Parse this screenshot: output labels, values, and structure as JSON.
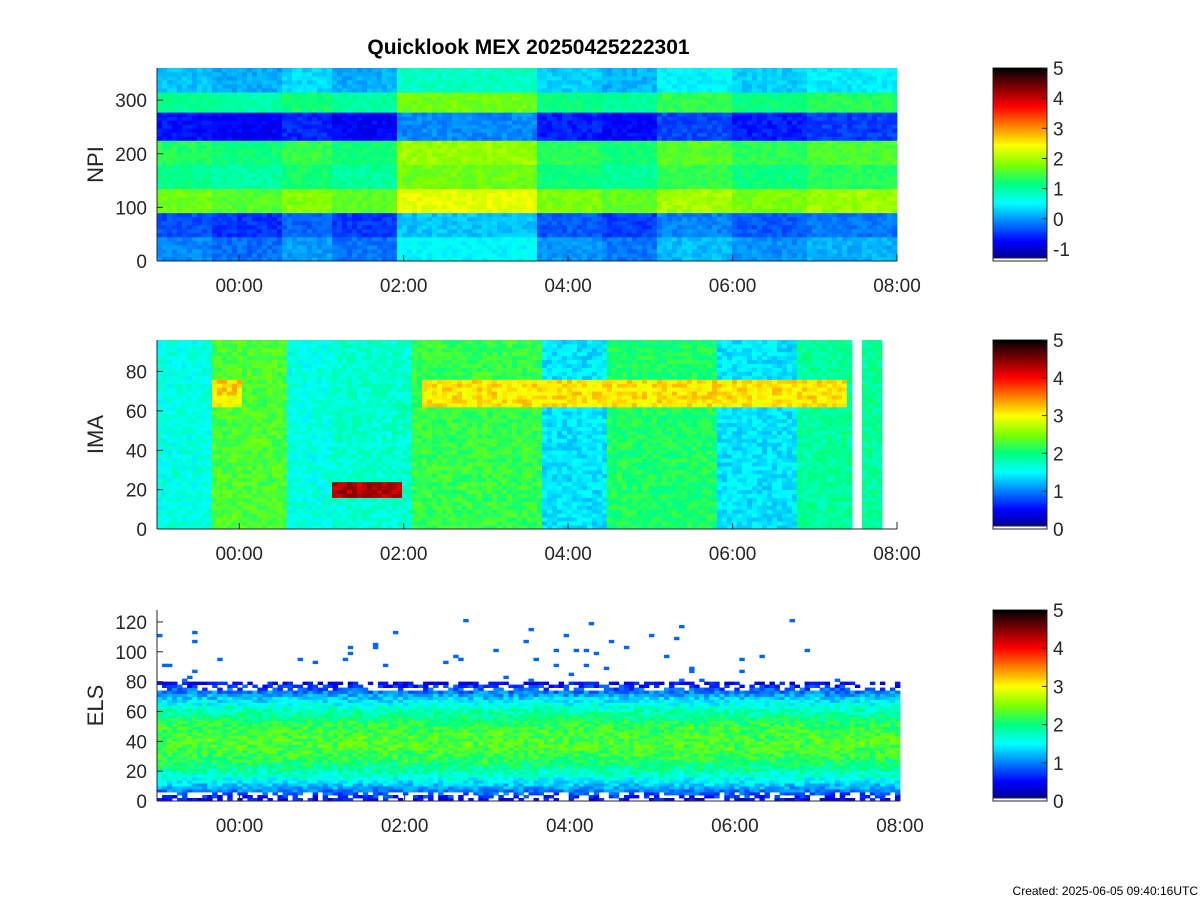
{
  "title": "Quicklook MEX 20250425222301",
  "created": "Created: 2025-06-05 09:40:16UTC",
  "colormap": [
    "#00007f",
    "#0000ff",
    "#0080ff",
    "#00ffff",
    "#00ff80",
    "#7fff00",
    "#ffff00",
    "#ff8000",
    "#ff0000",
    "#7f0000",
    "#000000"
  ],
  "chart_data": [
    {
      "type": "heatmap",
      "name": "npi",
      "ylabel": "NPI",
      "xlabel": "",
      "x_ticks": [
        "00:00",
        "02:00",
        "04:00",
        "06:00",
        "08:00"
      ],
      "x_tick_hours": [
        0,
        2,
        4,
        6,
        8
      ],
      "xlim_hours": [
        -1,
        8
      ],
      "y_ticks": [
        0,
        100,
        200,
        300
      ],
      "ylim": [
        0,
        360
      ],
      "colorbar": {
        "ticks": [
          -1,
          0,
          1,
          2,
          3,
          4,
          5
        ],
        "range": [
          -1.4,
          5
        ]
      },
      "time_blocks": [
        {
          "from": -1.0,
          "to": -0.35,
          "level": 0.4
        },
        {
          "from": -0.35,
          "to": 0.5,
          "level": 0.15
        },
        {
          "from": 0.5,
          "to": 1.1,
          "level": 0.6
        },
        {
          "from": 1.1,
          "to": 1.9,
          "level": 0.2
        },
        {
          "from": 1.9,
          "to": 3.6,
          "level": 1.5
        },
        {
          "from": 3.6,
          "to": 4.4,
          "level": 0.5
        },
        {
          "from": 4.4,
          "to": 5.1,
          "level": 0.25
        },
        {
          "from": 5.1,
          "to": 6.0,
          "level": 0.9
        },
        {
          "from": 6.0,
          "to": 6.9,
          "level": 0.5
        },
        {
          "from": 6.9,
          "to": 8.0,
          "level": 0.8
        }
      ],
      "energy_bands": [
        {
          "from": 0,
          "to": 45,
          "level": -0.3
        },
        {
          "from": 45,
          "to": 90,
          "level": -0.6
        },
        {
          "from": 90,
          "to": 135,
          "level": 1.5
        },
        {
          "from": 135,
          "to": 180,
          "level": 0.9
        },
        {
          "from": 180,
          "to": 225,
          "level": 1.1
        },
        {
          "from": 225,
          "to": 280,
          "level": -0.9
        },
        {
          "from": 280,
          "to": 315,
          "level": 0.9
        },
        {
          "from": 315,
          "to": 360,
          "level": 0.0
        }
      ]
    },
    {
      "type": "heatmap",
      "name": "ima",
      "ylabel": "IMA",
      "xlabel": "",
      "x_ticks": [
        "00:00",
        "02:00",
        "04:00",
        "06:00",
        "08:00"
      ],
      "x_tick_hours": [
        0,
        2,
        4,
        6,
        8
      ],
      "xlim_hours": [
        -1,
        8
      ],
      "y_ticks": [
        0,
        20,
        40,
        60,
        80
      ],
      "ylim": [
        0,
        96
      ],
      "colorbar": {
        "ticks": [
          0,
          1,
          2,
          3,
          4,
          5
        ],
        "range": [
          0,
          5
        ]
      },
      "data_gaps": [
        [
          7.45,
          7.55
        ],
        [
          7.8,
          8.0
        ]
      ],
      "time_blocks": [
        {
          "from": -1.0,
          "to": -0.35,
          "level": 1.6
        },
        {
          "from": -0.35,
          "to": 0.6,
          "level": 2.3
        },
        {
          "from": 0.6,
          "to": 1.1,
          "level": 1.6
        },
        {
          "from": 1.1,
          "to": 2.1,
          "level": 1.7
        },
        {
          "from": 2.1,
          "to": 3.7,
          "level": 2.2
        },
        {
          "from": 3.7,
          "to": 4.5,
          "level": 1.4
        },
        {
          "from": 4.5,
          "to": 5.8,
          "level": 2.1
        },
        {
          "from": 5.8,
          "to": 6.8,
          "level": 1.4
        },
        {
          "from": 6.8,
          "to": 8.0,
          "level": 1.9
        }
      ],
      "features": [
        {
          "from": 1.1,
          "to": 2.0,
          "energy": 20,
          "level": 4.3
        },
        {
          "from": 2.2,
          "to": 7.4,
          "energy": 72,
          "level": 3.1
        },
        {
          "from": 2.2,
          "to": 7.4,
          "energy": 65,
          "level": 3.1
        },
        {
          "from": -0.35,
          "to": 0.05,
          "energy": 72,
          "level": 3.2
        },
        {
          "from": -0.35,
          "to": 0.05,
          "energy": 65,
          "level": 3.0
        }
      ]
    },
    {
      "type": "heatmap",
      "name": "els",
      "ylabel": "ELS",
      "xlabel": "",
      "x_ticks": [
        "00:00",
        "02:00",
        "04:00",
        "06:00",
        "08:00"
      ],
      "x_tick_hours": [
        0,
        2,
        4,
        6,
        8
      ],
      "xlim_hours": [
        -1,
        8
      ],
      "y_ticks": [
        0,
        20,
        40,
        60,
        80,
        100,
        120
      ],
      "ylim": [
        0,
        128
      ],
      "colorbar": {
        "ticks": [
          0,
          1,
          2,
          3,
          4,
          5
        ],
        "range": [
          0,
          5
        ]
      },
      "band_center": 40,
      "band_halfwidth": 38,
      "band_peak_level": 2.3
    }
  ]
}
